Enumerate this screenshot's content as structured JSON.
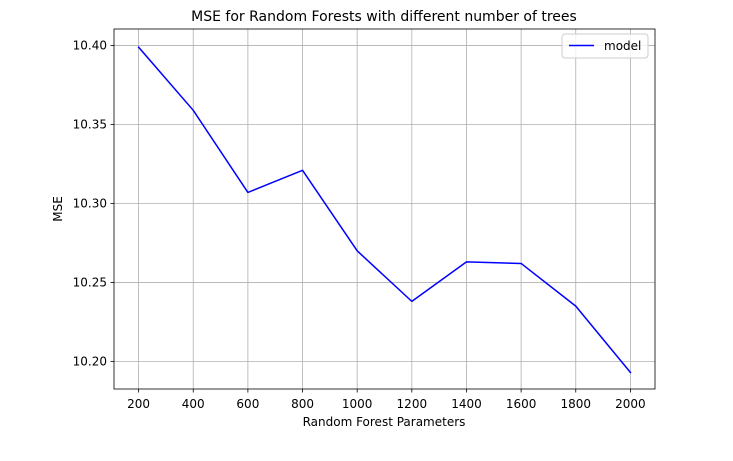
{
  "chart_data": {
    "type": "line",
    "title": "MSE for Random Forests with different number of trees",
    "xlabel": "Random Forest Parameters",
    "ylabel": "MSE",
    "x": [
      200,
      400,
      600,
      800,
      1000,
      1200,
      1400,
      1600,
      1800,
      2000
    ],
    "x_ticks": [
      "200",
      "400",
      "600",
      "800",
      "1000",
      "1200",
      "1400",
      "1600",
      "1800",
      "2000"
    ],
    "y_ticks": [
      "10.20",
      "10.25",
      "10.30",
      "10.35",
      "10.40"
    ],
    "y_tick_values": [
      10.2,
      10.25,
      10.3,
      10.35,
      10.4
    ],
    "xlim": [
      110,
      2090
    ],
    "ylim": [
      10.1825,
      10.4105
    ],
    "grid": true,
    "legend_placement": "upper-right",
    "series": [
      {
        "name": "model",
        "color": "#0000ff",
        "values": [
          10.399,
          10.359,
          10.307,
          10.321,
          10.27,
          10.238,
          10.263,
          10.262,
          10.235,
          10.193
        ]
      }
    ]
  }
}
